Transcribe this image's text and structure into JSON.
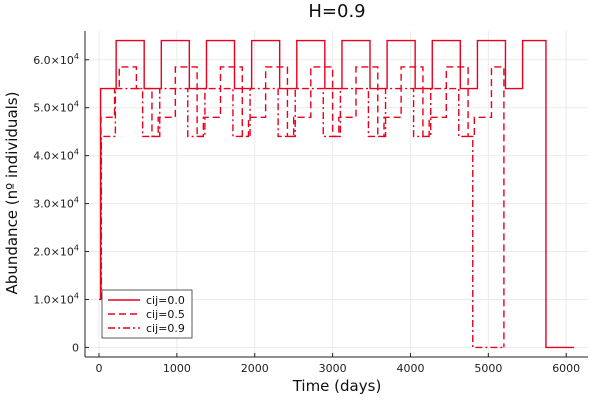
{
  "chart_data": {
    "type": "line",
    "title": "H=0.9",
    "xlabel": "Time (days)",
    "ylabel": "Abundance (nº individuals)",
    "xlim": [
      -180,
      6280
    ],
    "ylim": [
      -2000,
      66000
    ],
    "x_ticks": [
      0,
      1000,
      2000,
      3000,
      4000,
      5000,
      6000
    ],
    "x_tick_labels": [
      "0",
      "1000",
      "2000",
      "3000",
      "4000",
      "5000",
      "6000"
    ],
    "y_ticks": [
      0,
      10000,
      20000,
      30000,
      40000,
      50000,
      60000
    ],
    "y_tick_labels": [
      {
        "mantissa": "0",
        "exponent": ""
      },
      {
        "mantissa": "1.0×10",
        "exponent": "4"
      },
      {
        "mantissa": "2.0×10",
        "exponent": "4"
      },
      {
        "mantissa": "3.0×10",
        "exponent": "4"
      },
      {
        "mantissa": "4.0×10",
        "exponent": "4"
      },
      {
        "mantissa": "5.0×10",
        "exponent": "4"
      },
      {
        "mantissa": "6.0×10",
        "exponent": "4"
      }
    ],
    "grid": true,
    "legend_position": "bottom-left",
    "series": [
      {
        "name": "cij=0.0",
        "color": "#e8001d",
        "dash": "solid",
        "x": [
          0,
          20,
          20,
          220,
          220,
          580,
          580,
          800,
          800,
          1160,
          1160,
          1380,
          1380,
          1740,
          1740,
          1960,
          1960,
          2320,
          2320,
          2540,
          2540,
          2900,
          2900,
          3120,
          3120,
          3480,
          3480,
          3700,
          3700,
          4060,
          4060,
          4280,
          4280,
          4640,
          4640,
          4860,
          4860,
          5220,
          5220,
          5440,
          5440,
          5740,
          5740,
          6100
        ],
        "y": [
          10000,
          10000,
          54000,
          54000,
          64000,
          64000,
          54000,
          54000,
          64000,
          64000,
          54000,
          54000,
          64000,
          64000,
          54000,
          54000,
          64000,
          64000,
          54000,
          54000,
          64000,
          64000,
          54000,
          54000,
          64000,
          64000,
          54000,
          54000,
          64000,
          64000,
          54000,
          54000,
          64000,
          64000,
          54000,
          54000,
          64000,
          64000,
          54000,
          54000,
          64000,
          64000,
          0,
          0
        ]
      },
      {
        "name": "cij=0.5",
        "color": "#e8001d",
        "dash": "dashed",
        "x": [
          25,
          25,
          200,
          200,
          260,
          260,
          480,
          480,
          680,
          680,
          760,
          760,
          980,
          980,
          1260,
          1260,
          1340,
          1340,
          1560,
          1560,
          1840,
          1840,
          1920,
          1920,
          2140,
          2140,
          2420,
          2420,
          2500,
          2500,
          2720,
          2720,
          3000,
          3000,
          3080,
          3080,
          3300,
          3300,
          3580,
          3580,
          3660,
          3660,
          3880,
          3880,
          4160,
          4160,
          4240,
          4240,
          4460,
          4460,
          4740,
          4740,
          4820,
          4820,
          5040,
          5040,
          5200,
          5200
        ],
        "y": [
          10000,
          48000,
          48000,
          54000,
          54000,
          58500,
          58500,
          54000,
          54000,
          44000,
          44000,
          48000,
          48000,
          58500,
          58500,
          44000,
          44000,
          48000,
          48000,
          58500,
          58500,
          44000,
          44000,
          48000,
          48000,
          58500,
          58500,
          44000,
          44000,
          48000,
          48000,
          58500,
          58500,
          44000,
          44000,
          48000,
          48000,
          58500,
          58500,
          44000,
          44000,
          48000,
          48000,
          58500,
          58500,
          44000,
          44000,
          48000,
          48000,
          58500,
          58500,
          44000,
          44000,
          48000,
          48000,
          58500,
          58500,
          0
        ]
      },
      {
        "name": "cij=0.9",
        "color": "#e8001d",
        "dash": "dashdot",
        "x": [
          30,
          30,
          210,
          210,
          560,
          560,
          780,
          780,
          1140,
          1140,
          1360,
          1360,
          1720,
          1720,
          1940,
          1940,
          2300,
          2300,
          2520,
          2520,
          2880,
          2880,
          3100,
          3100,
          3460,
          3460,
          3680,
          3680,
          4040,
          4040,
          4260,
          4260,
          4620,
          4620,
          4800,
          4800,
          5200
        ],
        "y": [
          10000,
          44000,
          44000,
          54000,
          54000,
          44000,
          44000,
          54000,
          54000,
          44000,
          44000,
          54000,
          54000,
          44000,
          44000,
          54000,
          54000,
          44000,
          44000,
          54000,
          54000,
          44000,
          44000,
          54000,
          54000,
          44000,
          44000,
          54000,
          54000,
          44000,
          44000,
          54000,
          54000,
          44000,
          44000,
          0,
          0
        ]
      }
    ]
  }
}
